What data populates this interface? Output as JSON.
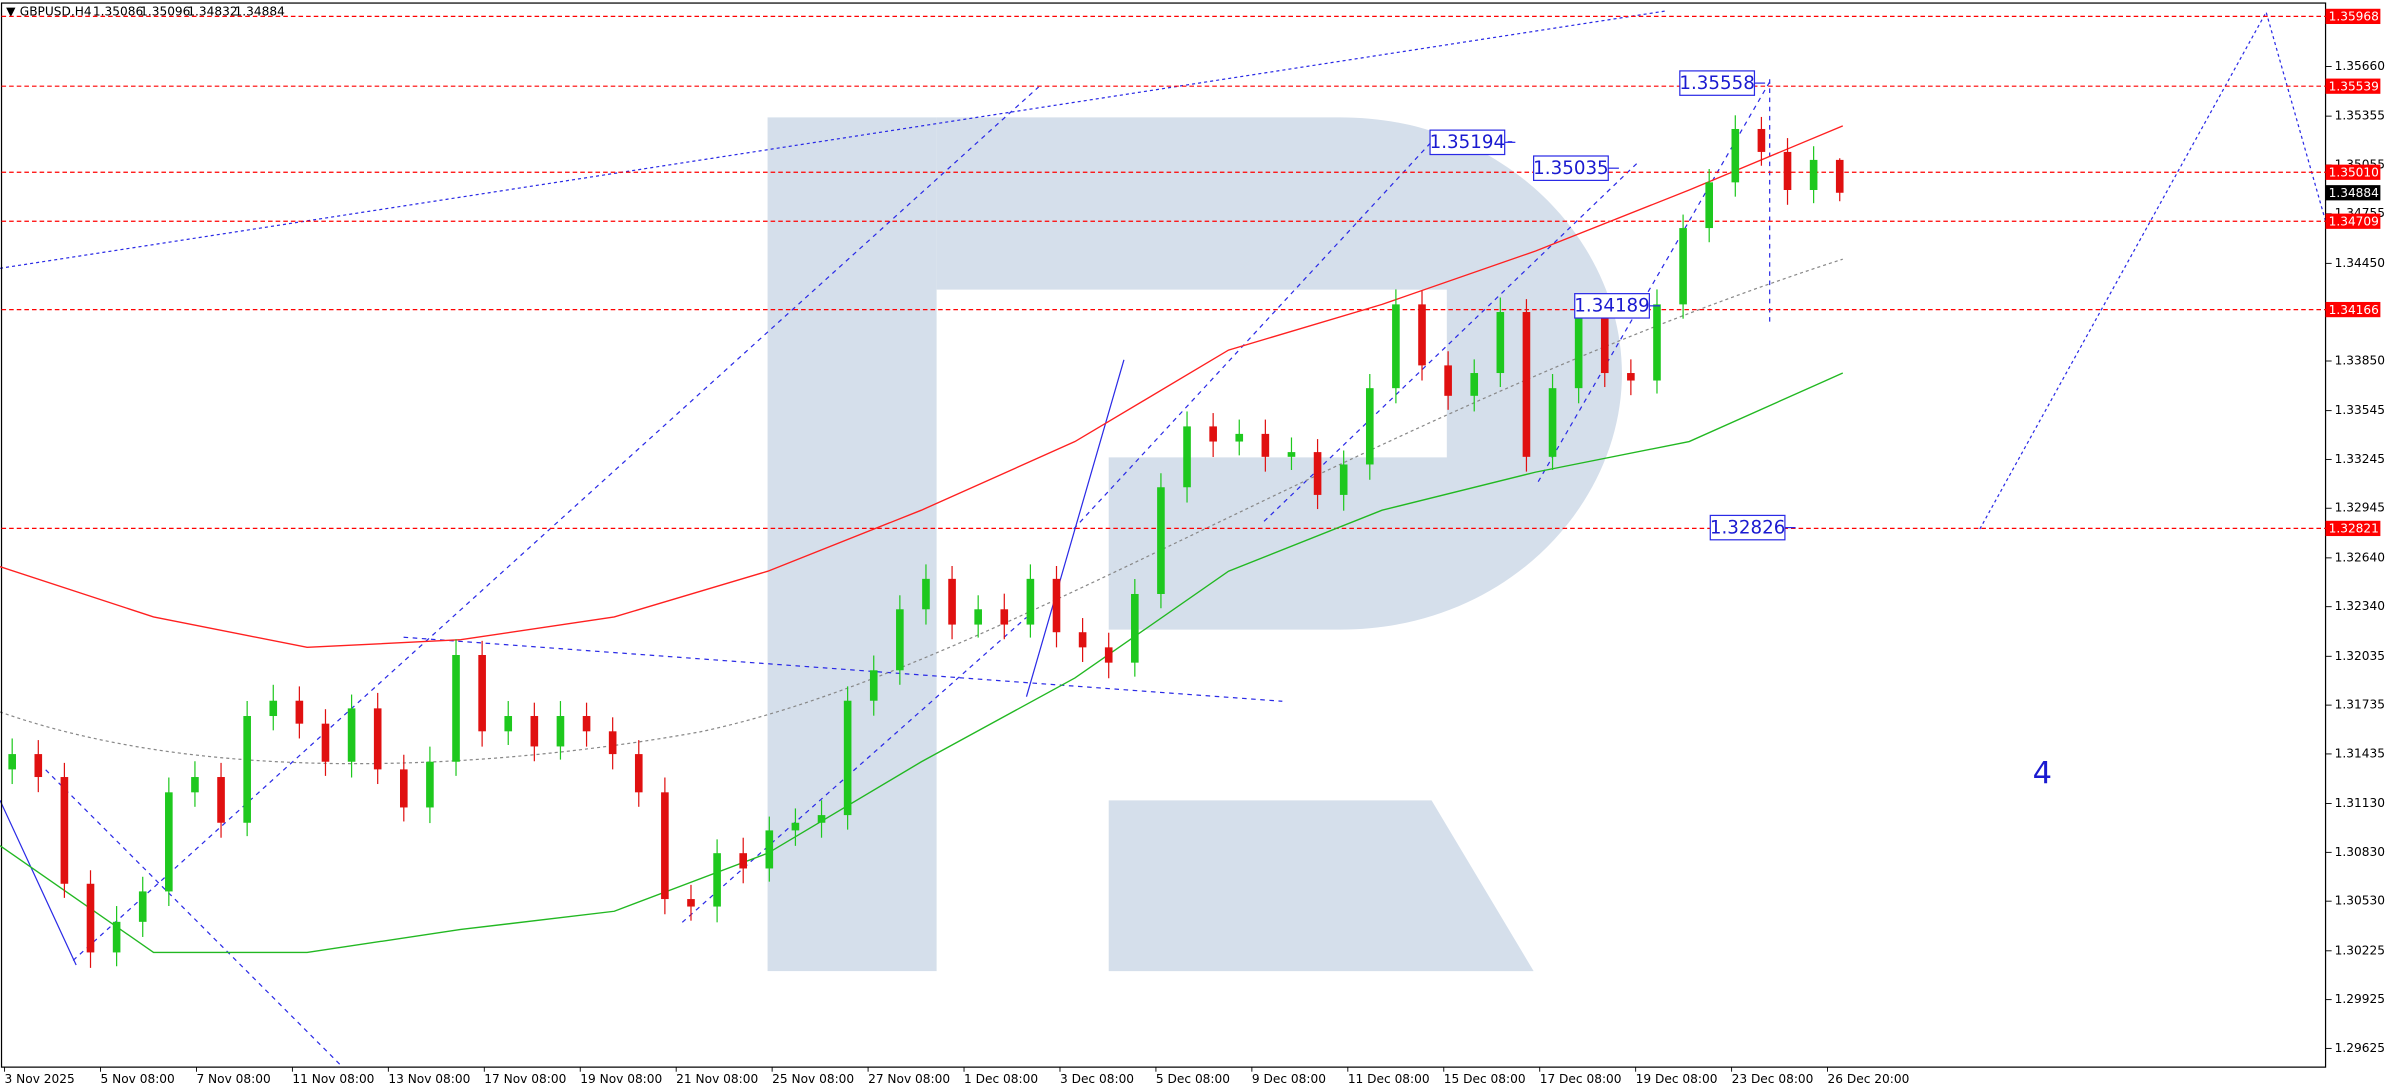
{
  "chart_data": {
    "type": "candlestick",
    "title": "GBPUSD,H4",
    "open": [
      1.3134,
      1.31434,
      1.31293,
      1.30637,
      1.30215,
      1.30403,
      1.3059,
      1.31199,
      1.31293,
      1.31012,
      1.31668,
      1.31762,
      1.31621,
      1.31387,
      1.31715,
      1.3134,
      1.31106,
      1.31387,
      1.32043,
      1.31574,
      1.31668,
      1.31481,
      1.31668,
      1.31574,
      1.31434,
      1.31199,
      1.30543,
      1.30497,
      1.30825,
      1.30731,
      1.30965,
      1.31012,
      1.31059,
      1.31762,
      1.31949,
      1.32324,
      1.32511,
      1.3223,
      1.32324,
      1.3223,
      1.32511,
      1.32183,
      1.3209,
      1.31996,
      1.32418,
      1.33074,
      1.33448,
      1.33355,
      1.33402,
      1.33261,
      1.3329,
      1.33027,
      1.33214,
      1.33683,
      1.34198,
      1.33823,
      1.33636,
      1.33776,
      1.34151,
      1.33261,
      1.33683,
      1.34151,
      1.33776,
      1.3373,
      1.34198,
      1.34667,
      1.34948,
      1.35276,
      1.35135,
      1.34901,
      1.35086
    ],
    "high": [
      1.3153,
      1.3152,
      1.3138,
      1.3072,
      1.305,
      1.3068,
      1.3129,
      1.3139,
      1.3138,
      1.3176,
      1.3186,
      1.3185,
      1.3171,
      1.318,
      1.3181,
      1.3143,
      1.3148,
      1.3214,
      1.3213,
      1.3176,
      1.3175,
      1.3176,
      1.3175,
      1.3166,
      1.3152,
      1.3129,
      1.3063,
      1.3091,
      1.3092,
      1.3105,
      1.311,
      1.3115,
      1.3185,
      1.3204,
      1.3241,
      1.326,
      1.3259,
      1.3241,
      1.3242,
      1.326,
      1.3259,
      1.3227,
      1.3218,
      1.3251,
      1.3316,
      1.3354,
      1.3353,
      1.3349,
      1.3349,
      1.3338,
      1.3337,
      1.333,
      1.3377,
      1.3429,
      1.3428,
      1.3391,
      1.3386,
      1.3424,
      1.3423,
      1.3377,
      1.3424,
      1.3423,
      1.3386,
      1.3429,
      1.3475,
      1.3503,
      1.3536,
      1.3535,
      1.3522,
      1.3517,
      1.35096
    ],
    "low": [
      1.3125,
      1.312,
      1.3055,
      1.3012,
      1.3013,
      1.3031,
      1.305,
      1.3111,
      1.3092,
      1.3093,
      1.3158,
      1.3153,
      1.313,
      1.3129,
      1.3125,
      1.3102,
      1.3101,
      1.313,
      1.3148,
      1.3149,
      1.3139,
      1.314,
      1.3148,
      1.3134,
      1.3111,
      1.3045,
      1.3041,
      1.304,
      1.3064,
      1.3065,
      1.3087,
      1.3092,
      1.3097,
      1.3167,
      1.3186,
      1.3223,
      1.3214,
      1.3215,
      1.3214,
      1.3215,
      1.3209,
      1.32,
      1.319,
      1.3191,
      1.3233,
      1.3298,
      1.3326,
      1.3327,
      1.3317,
      1.3318,
      1.3294,
      1.3293,
      1.3312,
      1.3359,
      1.3373,
      1.3355,
      1.3354,
      1.3369,
      1.3317,
      1.3318,
      1.3359,
      1.3369,
      1.3364,
      1.3365,
      1.3411,
      1.3458,
      1.3486,
      1.3505,
      1.3481,
      1.3482,
      1.34832
    ],
    "close": [
      1.31434,
      1.31293,
      1.30637,
      1.30215,
      1.30403,
      1.3059,
      1.31199,
      1.31293,
      1.31012,
      1.31668,
      1.31762,
      1.31621,
      1.31387,
      1.31715,
      1.3134,
      1.31106,
      1.31387,
      1.32043,
      1.31574,
      1.31668,
      1.31481,
      1.31668,
      1.31574,
      1.31434,
      1.31199,
      1.30543,
      1.30497,
      1.30825,
      1.30731,
      1.30965,
      1.31012,
      1.31059,
      1.31762,
      1.31949,
      1.32324,
      1.32511,
      1.3223,
      1.32324,
      1.3223,
      1.32511,
      1.32183,
      1.3209,
      1.31996,
      1.32418,
      1.33074,
      1.33448,
      1.33355,
      1.33402,
      1.33261,
      1.3329,
      1.33027,
      1.33214,
      1.33683,
      1.34198,
      1.33823,
      1.33636,
      1.33776,
      1.34151,
      1.33261,
      1.33683,
      1.34151,
      1.33776,
      1.3373,
      1.34198,
      1.34667,
      1.34948,
      1.35276,
      1.35135,
      1.34901,
      1.35086,
      1.34884
    ],
    "up_color": "#1ec81e",
    "down_color": "#e01010",
    "moving_averages": [
      {
        "color": "#ff2020",
        "values": [
          1.32586,
          1.32277,
          1.3209,
          1.32137,
          1.32277,
          1.32558,
          1.32933,
          1.33355,
          1.33917,
          1.34198,
          1.34526,
          1.34901,
          1.35295
        ]
      },
      {
        "color": "#22b822",
        "values": [
          1.30871,
          1.30215,
          1.30215,
          1.30356,
          1.30468,
          1.30825,
          1.31387,
          1.31902,
          1.32558,
          1.32933,
          1.33167,
          1.33355,
          1.33776
        ]
      }
    ],
    "ylim": [
      1.2951,
      1.3605
    ],
    "yticks": [
      {
        "value": 1.3566,
        "label": "1.35660"
      },
      1.35355,
      1.35055,
      1.34755,
      {
        "value": 1.3445,
        "label": "1.34450"
      },
      {
        "value": 1.3385,
        "label": "1.33850"
      },
      1.33545,
      1.33245,
      1.32945,
      {
        "value": 1.3264,
        "label": "1.32640"
      },
      {
        "value": 1.3234,
        "label": "1.32340"
      },
      1.32035,
      1.31735,
      1.31435,
      {
        "value": 1.3113,
        "label": "1.31130"
      },
      {
        "value": 1.3083,
        "label": "1.30830"
      },
      {
        "value": 1.3053,
        "label": "1.30530"
      },
      1.30225,
      1.29925,
      1.29625
    ],
    "levels": [
      1.35968,
      1.35539,
      {
        "value": 1.3501,
        "label": "1.35010"
      },
      1.34709,
      1.34166,
      1.32821
    ],
    "level_color": "#ff0000",
    "price_labels": [
      1.35558,
      1.35194,
      1.35035,
      1.34189,
      1.32826
    ],
    "wave_label": "4",
    "time_labels": [
      "3 Nov 2025",
      "5 Nov 08:00",
      "7 Nov 08:00",
      "11 Nov 08:00",
      "13 Nov 08:00",
      "17 Nov 08:00",
      "19 Nov 08:00",
      "21 Nov 08:00",
      "25 Nov 08:00",
      "27 Nov 08:00",
      "1 Dec 08:00",
      "3 Dec 08:00",
      "5 Dec 08:00",
      "9 Dec 08:00",
      "11 Dec 08:00",
      "15 Dec 08:00",
      "17 Dec 08:00",
      "19 Dec 08:00",
      "23 Dec 08:00",
      "26 Dec 20:00"
    ]
  }
}
